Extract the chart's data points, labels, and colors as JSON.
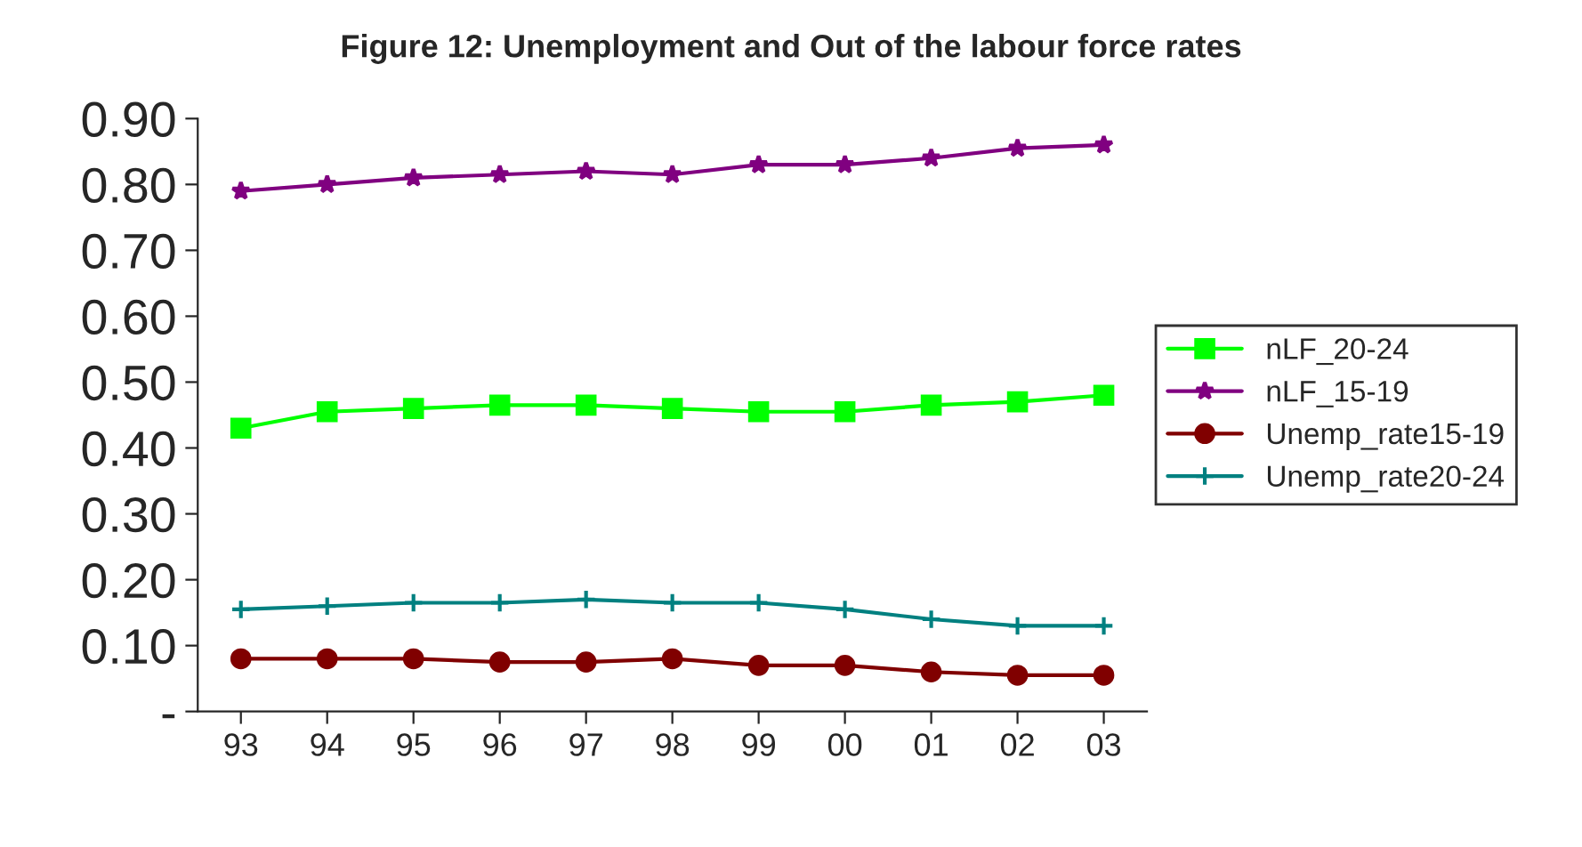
{
  "chart_data": {
    "type": "line",
    "title": "Figure 12: Unemployment and Out of the labour force rates",
    "categories": [
      "93",
      "94",
      "95",
      "96",
      "97",
      "98",
      "99",
      "00",
      "01",
      "02",
      "03"
    ],
    "series": [
      {
        "name": "nLF_20-24",
        "color": "#00ff00",
        "marker": "square",
        "values": [
          0.43,
          0.455,
          0.46,
          0.465,
          0.465,
          0.46,
          0.455,
          0.455,
          0.465,
          0.47,
          0.48
        ]
      },
      {
        "name": "nLF_15-19",
        "color": "#800080",
        "marker": "star",
        "values": [
          0.79,
          0.8,
          0.81,
          0.815,
          0.82,
          0.815,
          0.83,
          0.83,
          0.84,
          0.855,
          0.86
        ]
      },
      {
        "name": "Unemp_rate15-19",
        "color": "#800000",
        "marker": "circle",
        "values": [
          0.08,
          0.08,
          0.08,
          0.075,
          0.075,
          0.08,
          0.07,
          0.07,
          0.06,
          0.055,
          0.055
        ]
      },
      {
        "name": "Unemp_rate20-24",
        "color": "#008080",
        "marker": "cross",
        "values": [
          0.155,
          0.16,
          0.165,
          0.165,
          0.17,
          0.165,
          0.165,
          0.155,
          0.14,
          0.13,
          0.13
        ]
      }
    ],
    "ylim": [
      0,
      0.9
    ],
    "yticks": [
      {
        "value": 0,
        "label": "-"
      },
      {
        "value": 0.1,
        "label": "0.10"
      },
      {
        "value": 0.2,
        "label": "0.20"
      },
      {
        "value": 0.3,
        "label": "0.30"
      },
      {
        "value": 0.4,
        "label": "0.40"
      },
      {
        "value": 0.5,
        "label": "0.50"
      },
      {
        "value": 0.6,
        "label": "0.60"
      },
      {
        "value": 0.7,
        "label": "0.70"
      },
      {
        "value": 0.8,
        "label": "0.80"
      },
      {
        "value": 0.9,
        "label": "0.90"
      }
    ],
    "grid": false,
    "legend": "right",
    "line_style": "solid"
  }
}
